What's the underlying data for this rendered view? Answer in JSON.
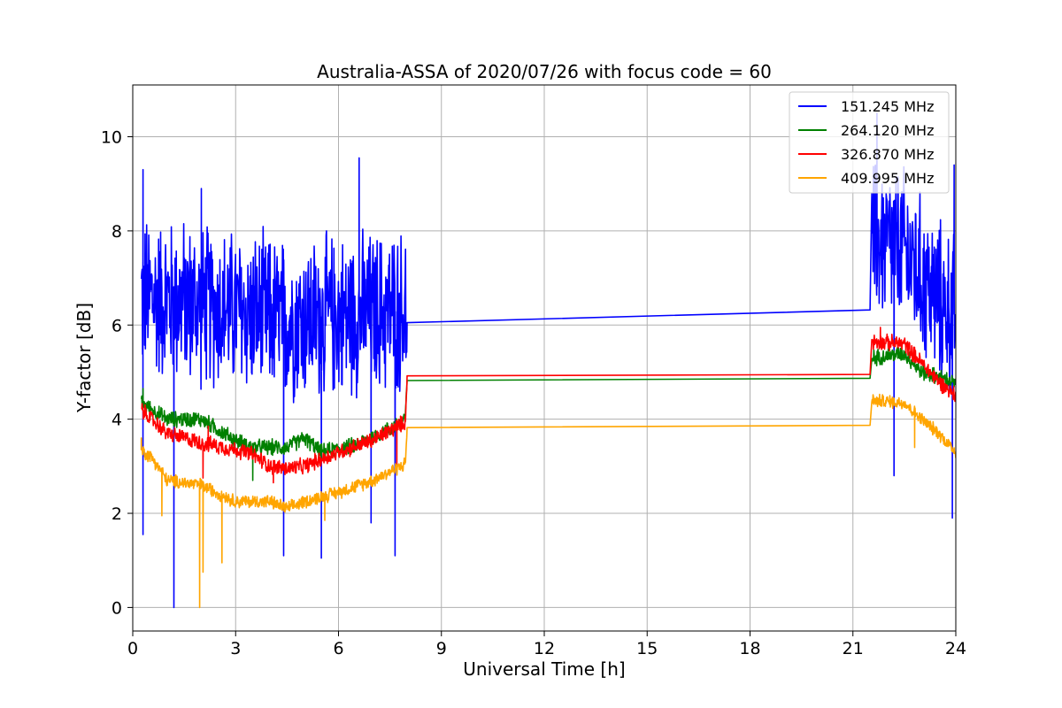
{
  "chart_data": {
    "type": "line",
    "title": "Australia-ASSA of 2020/07/26 with focus code = 60",
    "xlabel": "Universal Time [h]",
    "ylabel": "Y-factor [dB]",
    "xlim": [
      0,
      24
    ],
    "ylim": [
      -0.5,
      11.1
    ],
    "xticks": [
      0,
      3,
      6,
      9,
      12,
      15,
      18,
      21,
      24
    ],
    "yticks": [
      0,
      2,
      4,
      6,
      8,
      10
    ],
    "xtick_labels": [
      "0",
      "3",
      "6",
      "9",
      "12",
      "15",
      "18",
      "21",
      "24"
    ],
    "ytick_labels": [
      "0",
      "2",
      "4",
      "6",
      "8",
      "10"
    ],
    "grid": true,
    "legend_position": "top-right",
    "series": [
      {
        "name": "151.245 MHz",
        "color": "#0000ff",
        "baseline": [
          [
            0.25,
            6.6
          ],
          [
            1.5,
            6.5
          ],
          [
            3,
            6.3
          ],
          [
            4.5,
            6.1
          ],
          [
            6,
            6.2
          ],
          [
            7.95,
            6.3
          ],
          [
            8.0,
            6.05
          ],
          [
            21.5,
            6.32
          ],
          [
            21.55,
            7.8
          ],
          [
            22.5,
            7.6
          ],
          [
            23,
            7.0
          ],
          [
            23.5,
            6.5
          ],
          [
            24,
            6.2
          ]
        ],
        "noise_amplitude": 1.8,
        "gap": [
          8.0,
          21.5
        ],
        "min_points": [
          [
            1.2,
            0.0
          ],
          [
            0.3,
            1.55
          ],
          [
            5.5,
            1.05
          ],
          [
            4.4,
            1.1
          ],
          [
            7.65,
            1.1
          ],
          [
            6.95,
            1.8
          ],
          [
            23.9,
            1.9
          ],
          [
            22.2,
            2.8
          ]
        ],
        "max_points": [
          [
            0.3,
            9.3
          ],
          [
            6.6,
            9.55
          ],
          [
            21.7,
            10.5
          ],
          [
            23.95,
            9.4
          ],
          [
            2.0,
            8.9
          ]
        ]
      },
      {
        "name": "264.120 MHz",
        "color": "#008000",
        "baseline": [
          [
            0.25,
            4.35
          ],
          [
            1,
            4.0
          ],
          [
            2,
            4.0
          ],
          [
            3,
            3.55
          ],
          [
            3.5,
            3.4
          ],
          [
            4.5,
            3.4
          ],
          [
            5,
            3.6
          ],
          [
            5.5,
            3.3
          ],
          [
            6.5,
            3.45
          ],
          [
            7.5,
            3.8
          ],
          [
            7.95,
            4.0
          ],
          [
            8.0,
            4.82
          ],
          [
            21.5,
            4.87
          ],
          [
            21.55,
            5.3
          ],
          [
            22.5,
            5.4
          ],
          [
            23,
            5.0
          ],
          [
            23.5,
            4.9
          ],
          [
            24,
            4.75
          ]
        ],
        "noise_amplitude": 0.18,
        "gap": [
          8.0,
          21.5
        ],
        "min_points": [
          [
            3.5,
            2.7
          ]
        ],
        "max_points": [
          [
            0.3,
            4.65
          ]
        ]
      },
      {
        "name": "326.870 MHz",
        "color": "#ff0000",
        "baseline": [
          [
            0.25,
            4.2
          ],
          [
            0.7,
            3.9
          ],
          [
            1,
            3.7
          ],
          [
            2,
            3.5
          ],
          [
            3,
            3.35
          ],
          [
            3.5,
            3.25
          ],
          [
            4,
            3.0
          ],
          [
            4.5,
            2.95
          ],
          [
            5,
            3.0
          ],
          [
            5.5,
            3.15
          ],
          [
            6,
            3.3
          ],
          [
            7,
            3.55
          ],
          [
            7.95,
            3.95
          ],
          [
            8.0,
            4.92
          ],
          [
            21.5,
            4.95
          ],
          [
            21.55,
            5.65
          ],
          [
            22.5,
            5.6
          ],
          [
            23,
            5.2
          ],
          [
            23.5,
            4.8
          ],
          [
            24,
            4.5
          ]
        ],
        "noise_amplitude": 0.18,
        "gap": [
          8.0,
          21.5
        ],
        "min_points": [
          [
            2.05,
            2.75
          ],
          [
            4.1,
            2.65
          ],
          [
            7.7,
            3.0
          ]
        ],
        "max_points": [
          [
            2.2,
            3.85
          ],
          [
            21.8,
            5.95
          ]
        ]
      },
      {
        "name": "409.995 MHz",
        "color": "#ffa500",
        "baseline": [
          [
            0.25,
            3.35
          ],
          [
            0.6,
            3.15
          ],
          [
            1,
            2.7
          ],
          [
            2,
            2.6
          ],
          [
            3,
            2.25
          ],
          [
            4,
            2.25
          ],
          [
            4.5,
            2.1
          ],
          [
            5,
            2.25
          ],
          [
            6,
            2.45
          ],
          [
            7,
            2.7
          ],
          [
            7.95,
            3.05
          ],
          [
            8.0,
            3.82
          ],
          [
            21.5,
            3.87
          ],
          [
            21.55,
            4.4
          ],
          [
            22.5,
            4.35
          ],
          [
            23,
            4.0
          ],
          [
            23.5,
            3.7
          ],
          [
            24,
            3.3
          ]
        ],
        "noise_amplitude": 0.15,
        "gap": [
          8.0,
          21.5
        ],
        "min_points": [
          [
            1.95,
            0.0
          ],
          [
            2.05,
            0.75
          ],
          [
            2.6,
            0.95
          ],
          [
            0.85,
            1.95
          ],
          [
            5.6,
            1.85
          ],
          [
            22.8,
            3.4
          ]
        ],
        "max_points": [
          [
            0.25,
            3.6
          ]
        ]
      }
    ]
  }
}
